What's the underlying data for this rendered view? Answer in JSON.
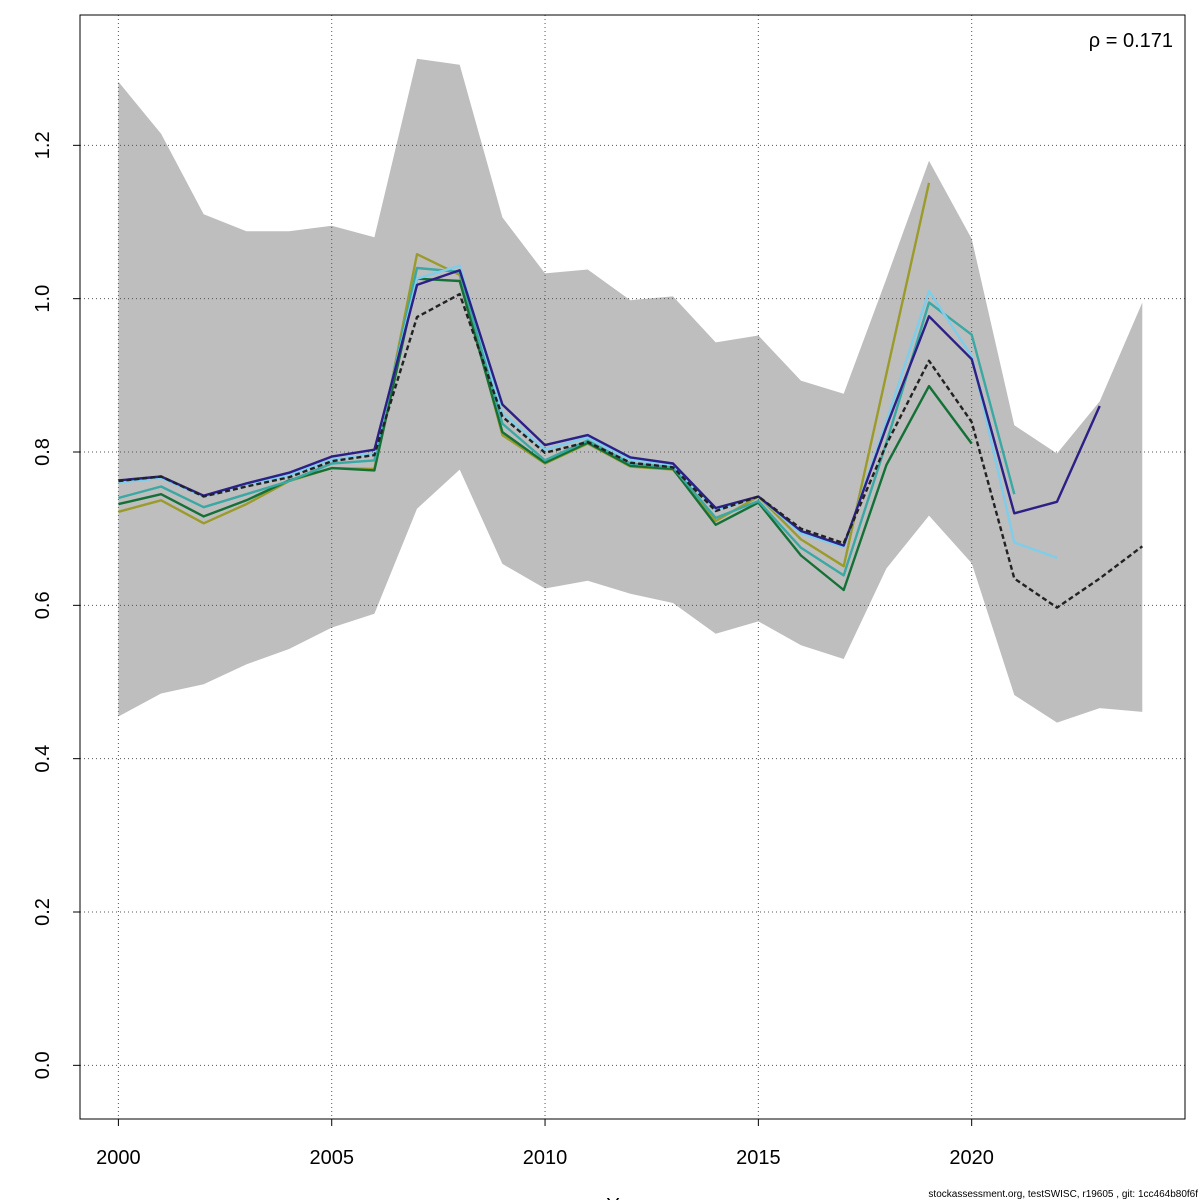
{
  "chart_data": {
    "type": "line",
    "title": "",
    "xlabel": "Y",
    "ylabel": "",
    "xlim": [
      1999.1,
      2025.0
    ],
    "ylim": [
      -0.07,
      1.37
    ],
    "x_ticks": [
      2000,
      2005,
      2010,
      2015,
      2020
    ],
    "y_ticks": [
      0.0,
      0.2,
      0.4,
      0.6,
      0.8,
      1.0,
      1.2
    ],
    "grid": true,
    "annotation": "ρ = 0.171",
    "footer": "stockassessment.org, testSWISC, r19605 , git: 1cc464b80f6f",
    "band": {
      "color": "#bebebe",
      "x": [
        2000,
        2001,
        2002,
        2003,
        2004,
        2005,
        2006,
        2007,
        2008,
        2009,
        2010,
        2011,
        2012,
        2013,
        2014,
        2015,
        2016,
        2017,
        2018,
        2019,
        2020,
        2021,
        2022,
        2023,
        2024
      ],
      "upper": [
        1.283,
        1.215,
        1.11,
        1.088,
        1.088,
        1.095,
        1.08,
        1.313,
        1.305,
        1.106,
        1.033,
        1.038,
        0.998,
        1.003,
        0.943,
        0.952,
        0.893,
        0.876,
        1.026,
        1.18,
        1.078,
        0.835,
        0.798,
        0.866,
        0.995
      ],
      "lower": [
        0.455,
        0.485,
        0.497,
        0.523,
        0.543,
        0.571,
        0.589,
        0.726,
        0.777,
        0.654,
        0.622,
        0.632,
        0.615,
        0.603,
        0.563,
        0.579,
        0.548,
        0.53,
        0.648,
        0.717,
        0.655,
        0.483,
        0.447,
        0.466,
        0.461
      ]
    },
    "series": [
      {
        "color": "#9b9b2b",
        "dashed": false,
        "x": [
          2000,
          2001,
          2002,
          2003,
          2004,
          2005,
          2006,
          2007,
          2008,
          2009,
          2010,
          2011,
          2012,
          2013,
          2014,
          2015,
          2016,
          2017,
          2018,
          2019
        ],
        "values": [
          0.722,
          0.737,
          0.707,
          0.732,
          0.762,
          0.779,
          0.778,
          1.058,
          1.031,
          0.822,
          0.785,
          0.811,
          0.781,
          0.777,
          0.71,
          0.742,
          0.686,
          0.651,
          0.902,
          1.151
        ]
      },
      {
        "color": "#157037",
        "dashed": false,
        "x": [
          2000,
          2001,
          2002,
          2003,
          2004,
          2005,
          2006,
          2007,
          2008,
          2009,
          2010,
          2011,
          2012,
          2013,
          2014,
          2015,
          2016,
          2017,
          2018,
          2019,
          2020
        ],
        "values": [
          0.732,
          0.745,
          0.716,
          0.737,
          0.763,
          0.779,
          0.776,
          1.026,
          1.023,
          0.826,
          0.786,
          0.812,
          0.782,
          0.778,
          0.705,
          0.734,
          0.665,
          0.62,
          0.783,
          0.886,
          0.811
        ]
      },
      {
        "color": "#3aa8a3",
        "dashed": false,
        "x": [
          2000,
          2001,
          2002,
          2003,
          2004,
          2005,
          2006,
          2007,
          2008,
          2009,
          2010,
          2011,
          2012,
          2013,
          2014,
          2015,
          2016,
          2017,
          2018,
          2019,
          2020,
          2021
        ],
        "values": [
          0.74,
          0.755,
          0.728,
          0.745,
          0.762,
          0.785,
          0.789,
          1.04,
          1.035,
          0.837,
          0.789,
          0.815,
          0.785,
          0.78,
          0.714,
          0.736,
          0.675,
          0.639,
          0.812,
          0.995,
          0.953,
          0.745
        ]
      },
      {
        "color": "#7ecdea",
        "dashed": false,
        "x": [
          2000,
          2001,
          2002,
          2003,
          2004,
          2005,
          2006,
          2007,
          2008,
          2009,
          2010,
          2011,
          2012,
          2013,
          2014,
          2015,
          2016,
          2017,
          2018,
          2019,
          2020,
          2021,
          2022
        ],
        "values": [
          0.76,
          0.766,
          0.742,
          0.757,
          0.77,
          0.79,
          0.798,
          1.026,
          1.043,
          0.851,
          0.803,
          0.819,
          0.79,
          0.783,
          0.724,
          0.742,
          0.694,
          0.676,
          0.84,
          1.01,
          0.925,
          0.682,
          0.662
        ]
      },
      {
        "color": "#2c1f85",
        "dashed": false,
        "x": [
          2000,
          2001,
          2002,
          2003,
          2004,
          2005,
          2006,
          2007,
          2008,
          2009,
          2010,
          2011,
          2012,
          2013,
          2014,
          2015,
          2016,
          2017,
          2018,
          2019,
          2020,
          2021,
          2022,
          2023
        ],
        "values": [
          0.763,
          0.768,
          0.743,
          0.759,
          0.773,
          0.794,
          0.803,
          1.018,
          1.037,
          0.862,
          0.809,
          0.822,
          0.793,
          0.785,
          0.727,
          0.742,
          0.697,
          0.678,
          0.833,
          0.977,
          0.921,
          0.72,
          0.735,
          0.86
        ]
      },
      {
        "color": "#222222",
        "dashed": true,
        "x": [
          2000,
          2001,
          2002,
          2003,
          2004,
          2005,
          2006,
          2007,
          2008,
          2009,
          2010,
          2011,
          2012,
          2013,
          2014,
          2015,
          2016,
          2017,
          2018,
          2019,
          2020,
          2021,
          2022,
          2023,
          2024
        ],
        "values": [
          0.762,
          0.768,
          0.742,
          0.755,
          0.767,
          0.788,
          0.796,
          0.976,
          1.006,
          0.846,
          0.799,
          0.813,
          0.786,
          0.78,
          0.723,
          0.742,
          0.7,
          0.681,
          0.81,
          0.919,
          0.839,
          0.635,
          0.597,
          0.635,
          0.677
        ]
      }
    ]
  }
}
